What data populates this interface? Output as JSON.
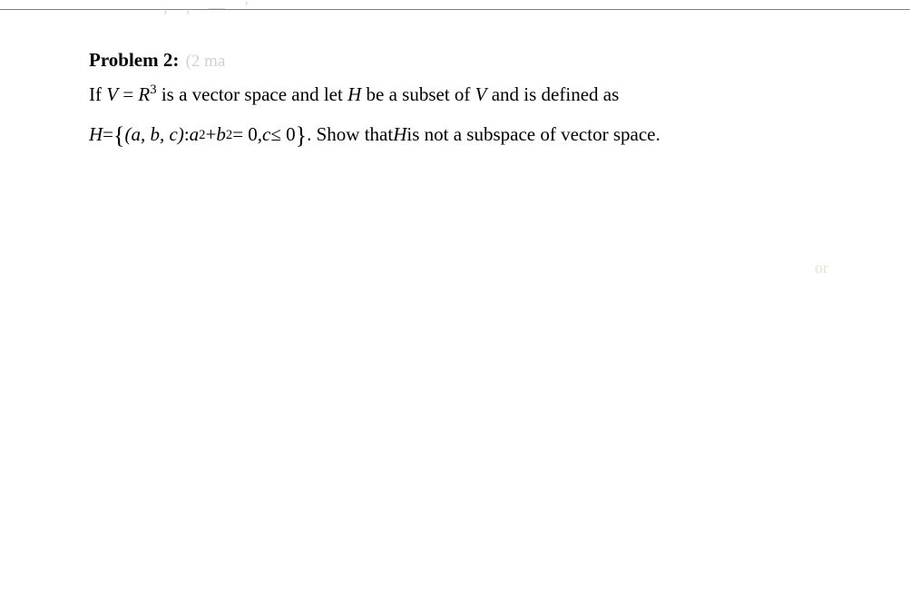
{
  "colors": {
    "page_background": "#ffffff",
    "text": "#000000",
    "rule": "#000000",
    "faint_gray": "#999999",
    "faint_amber": "#c9a86a"
  },
  "typography": {
    "body_font": "Times New Roman",
    "body_size_pt": 16,
    "bold_weight": 700
  },
  "marks_top": ", ,  — ʼ",
  "problem_label": "Problem 2:",
  "problem_marks_faint": "(2 ma",
  "line_if": "If ",
  "var_V": "V",
  "eq1": " = ",
  "var_R": "R",
  "exp3": "3",
  "is_text": " is  a vector space and let  ",
  "var_H": "H",
  "be_text": " be a subset of ",
  "var_V2": "V",
  "and_defined": "  and is defined as",
  "H_eq": " = ",
  "lbrace": "{",
  "tuple": "(a, b, c)",
  "colon": " : ",
  "a": "a",
  "sq": "2",
  "plus": " + ",
  "b": "b",
  "eq_zero": " = 0, ",
  "c": "c",
  "leq": " ≤ 0",
  "rbrace": "}",
  "period_show": ". Show that ",
  "var_H2": "H",
  "not_subspace": " is not a subspace of vector space.",
  "faint_or": "or"
}
